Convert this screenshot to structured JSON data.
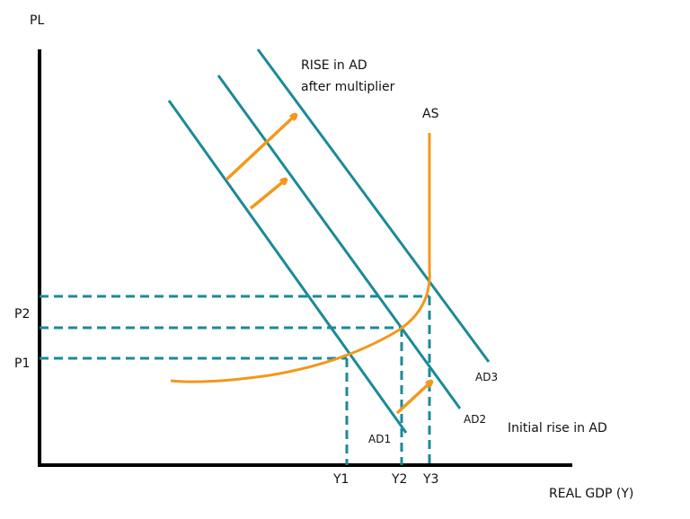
{
  "axes": {
    "y_label": "PL",
    "x_label": "REAL GDP (Y)"
  },
  "curves": {
    "ad1": "AD1",
    "ad2": "AD2",
    "ad3": "AD3",
    "as": "AS"
  },
  "price_levels": {
    "p1": "P1",
    "p2": "P2"
  },
  "outputs": {
    "y1": "Y1",
    "y2": "Y2",
    "y3": "Y3"
  },
  "annotations": {
    "multiplier_line1": "RISE in AD",
    "multiplier_line2": "after multiplier",
    "initial": "Initial rise in AD"
  },
  "colors": {
    "ad": "#1b8a98",
    "as": "#f2981c",
    "axis": "#000000"
  }
}
